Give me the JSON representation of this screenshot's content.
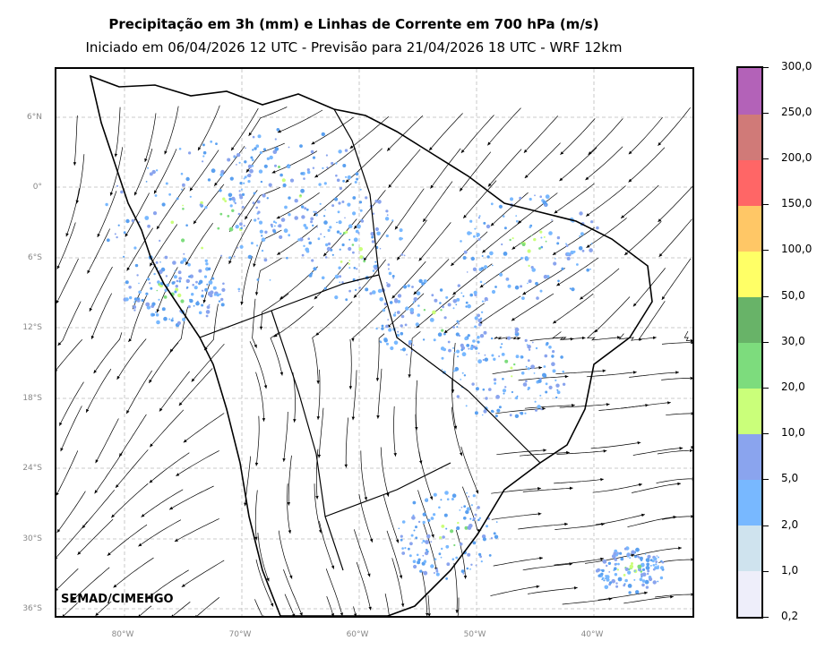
{
  "title": "Precipitação em 3h (mm) e Linhas de Corrente em 700 hPa (m/s)",
  "subtitle": "Iniciado em 06/04/2026 12 UTC - Previsão para 21/04/2026 18 UTC - WRF 12km",
  "credit": "SEMAD/CIMEHGO",
  "lat_labels": [
    "6°N",
    "0°",
    "6°S",
    "12°S",
    "18°S",
    "24°S",
    "30°S",
    "36°S"
  ],
  "lon_labels": [
    "80°W",
    "70°W",
    "60°W",
    "50°W",
    "40°W"
  ],
  "colorbar": {
    "labels": [
      "0,2",
      "1,0",
      "2,0",
      "5,0",
      "10,0",
      "20,0",
      "30,0",
      "50,0",
      "100,0",
      "150,0",
      "200,0",
      "250,0",
      "300,0"
    ],
    "colors": [
      "#eeeefa",
      "#cfe3ee",
      "#78b8ff",
      "#8aa4ee",
      "#caff7a",
      "#7ddc7d",
      "#68b368",
      "#ffff66",
      "#ffc766",
      "#ff6666",
      "#d07a78",
      "#b362b8"
    ]
  }
}
